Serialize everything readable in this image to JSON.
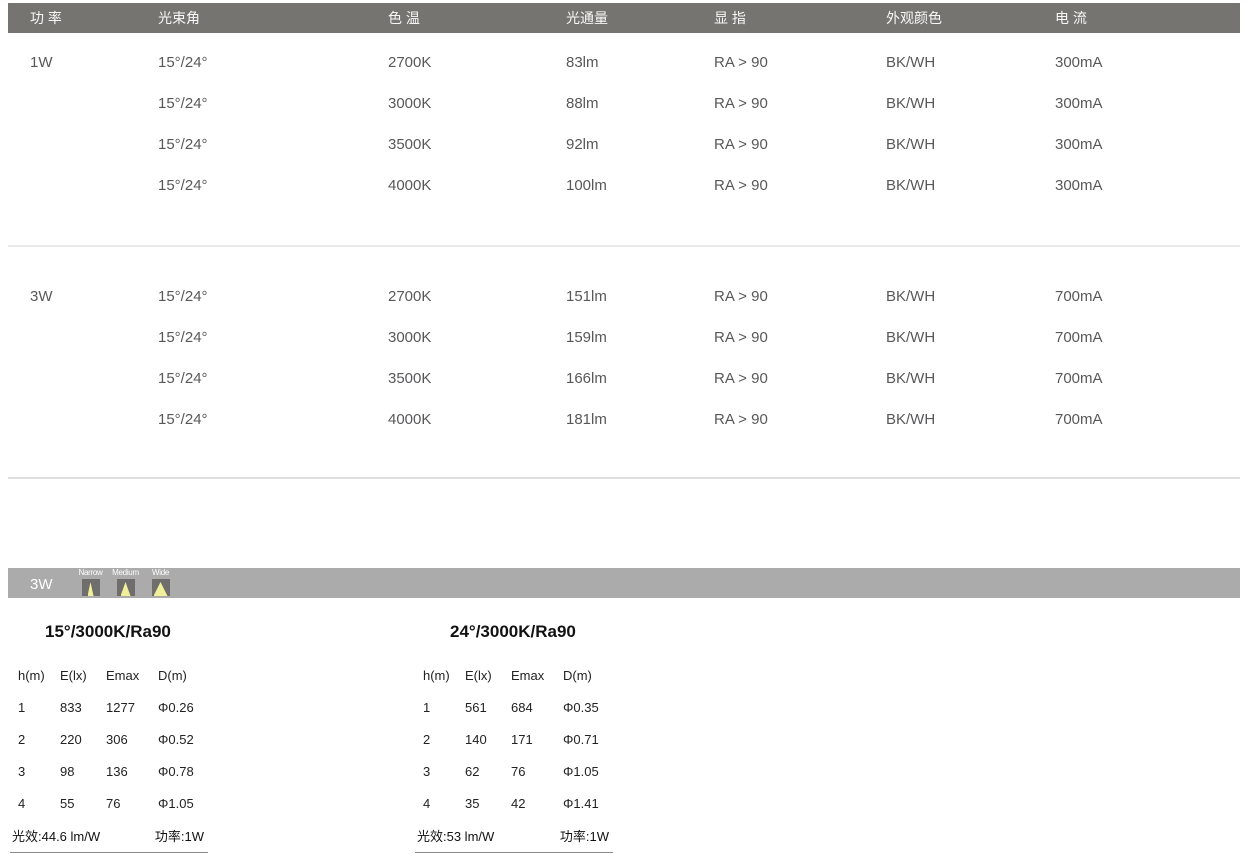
{
  "spec_table": {
    "headers": [
      "功 率",
      "光束角",
      "色 温",
      "光通量",
      "显 指",
      "外观颜色",
      "电 流"
    ],
    "groups": [
      {
        "power": "1W",
        "rows": [
          {
            "beam": "15°/24°",
            "cct": "2700K",
            "flux": "83lm",
            "cri": "RA > 90",
            "finish": "BK/WH",
            "current": "300mA"
          },
          {
            "beam": "15°/24°",
            "cct": "3000K",
            "flux": "88lm",
            "cri": "RA > 90",
            "finish": "BK/WH",
            "current": "300mA"
          },
          {
            "beam": "15°/24°",
            "cct": "3500K",
            "flux": "92lm",
            "cri": "RA > 90",
            "finish": "BK/WH",
            "current": "300mA"
          },
          {
            "beam": "15°/24°",
            "cct": "4000K",
            "flux": "100lm",
            "cri": "RA > 90",
            "finish": "BK/WH",
            "current": "300mA"
          }
        ]
      },
      {
        "power": "3W",
        "rows": [
          {
            "beam": "15°/24°",
            "cct": "2700K",
            "flux": "151lm",
            "cri": "RA > 90",
            "finish": "BK/WH",
            "current": "700mA"
          },
          {
            "beam": "15°/24°",
            "cct": "3000K",
            "flux": "159lm",
            "cri": "RA > 90",
            "finish": "BK/WH",
            "current": "700mA"
          },
          {
            "beam": "15°/24°",
            "cct": "3500K",
            "flux": "166lm",
            "cri": "RA > 90",
            "finish": "BK/WH",
            "current": "700mA"
          },
          {
            "beam": "15°/24°",
            "cct": "4000K",
            "flux": "181lm",
            "cri": "RA > 90",
            "finish": "BK/WH",
            "current": "700mA"
          }
        ]
      }
    ]
  },
  "photometric": {
    "bar_label": "3W",
    "beam_icons": [
      {
        "label": "Narrow"
      },
      {
        "label": "Medium"
      },
      {
        "label": "Wide"
      }
    ],
    "tables": [
      {
        "title": "15°/3000K/Ra90",
        "headers": [
          "h(m)",
          "E(lx)",
          "Emax",
          "D(m)"
        ],
        "rows": [
          [
            "1",
            "833",
            "1277",
            "Φ0.26"
          ],
          [
            "2",
            "220",
            "306",
            "Φ0.52"
          ],
          [
            "3",
            "98",
            "136",
            "Φ0.78"
          ],
          [
            "4",
            "55",
            "76",
            "Φ1.05"
          ]
        ],
        "efficacy": "光效:44.6 lm/W",
        "power": "功率:1W"
      },
      {
        "title": "24°/3000K/Ra90",
        "headers": [
          "h(m)",
          "E(lx)",
          "Emax",
          "D(m)"
        ],
        "rows": [
          [
            "1",
            "561",
            "684",
            "Φ0.35"
          ],
          [
            "2",
            "140",
            "171",
            "Φ0.71"
          ],
          [
            "3",
            "62",
            "76",
            "Φ1.05"
          ],
          [
            "4",
            "35",
            "42",
            "Φ1.41"
          ]
        ],
        "efficacy": "光效:53 lm/W",
        "power": "功率:1W"
      }
    ]
  },
  "colors": {
    "header_bar": "#767471",
    "photo_bar": "#ababab",
    "beam_box": "#6f6e6c",
    "beam_yellow": "#f0ef9a",
    "separator_light": "#eaeaea",
    "separator_dark": "#dedede",
    "spec_text": "#58585a"
  }
}
